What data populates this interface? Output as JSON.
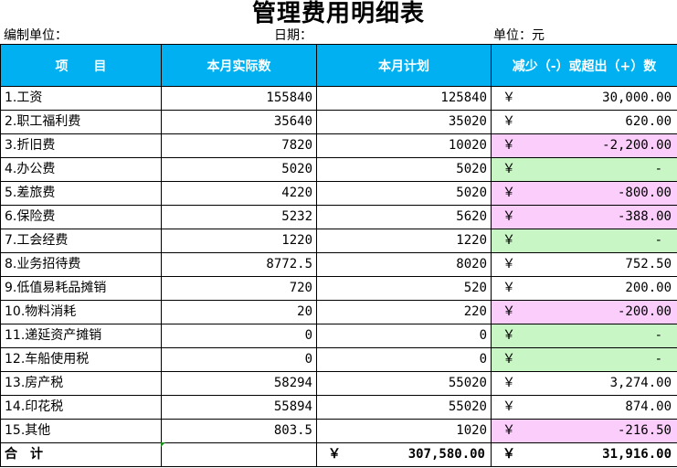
{
  "title": "管理费用明细表",
  "meta": {
    "unit_label": "编制单位：",
    "date_label": "日期：",
    "currency_label": "单位：元"
  },
  "headers": [
    "项　　目",
    "本月实际数",
    "本月计划",
    "减少（-）或超出（+）数"
  ],
  "currency_symbol": "￥",
  "rows": [
    {
      "item": "1.工资",
      "actual": "155840",
      "plan": "125840",
      "diff": "30,000.00",
      "sign": "pos"
    },
    {
      "item": "2.职工福利费",
      "actual": "35640",
      "plan": "35020",
      "diff": "620.00",
      "sign": "pos"
    },
    {
      "item": "3.折旧费",
      "actual": "7820",
      "plan": "10020",
      "diff": "-2,200.00",
      "sign": "neg"
    },
    {
      "item": "4.办公费",
      "actual": "5020",
      "plan": "5020",
      "diff": "-",
      "sign": "zero"
    },
    {
      "item": "5.差旅费",
      "actual": "4220",
      "plan": "5020",
      "diff": "-800.00",
      "sign": "neg"
    },
    {
      "item": "6.保险费",
      "actual": "5232",
      "plan": "5620",
      "diff": "-388.00",
      "sign": "neg"
    },
    {
      "item": "7.工会经费",
      "actual": "1220",
      "plan": "1220",
      "diff": "-",
      "sign": "zero"
    },
    {
      "item": "8.业务招待费",
      "actual": "8772.5",
      "plan": "8020",
      "diff": "752.50",
      "sign": "pos"
    },
    {
      "item": "9.低值易耗品摊销",
      "actual": "720",
      "plan": "520",
      "diff": "200.00",
      "sign": "pos"
    },
    {
      "item": "10.物料消耗",
      "actual": "20",
      "plan": "220",
      "diff": "-200.00",
      "sign": "neg"
    },
    {
      "item": "11.递延资产摊销",
      "actual": "0",
      "plan": "0",
      "diff": "-",
      "sign": "zero"
    },
    {
      "item": "12.车船使用税",
      "actual": "0",
      "plan": "0",
      "diff": "-",
      "sign": "zero"
    },
    {
      "item": "13.房产税",
      "actual": "58294",
      "plan": "55020",
      "diff": "3,274.00",
      "sign": "pos"
    },
    {
      "item": "14.印花税",
      "actual": "55894",
      "plan": "55020",
      "diff": "874.00",
      "sign": "pos"
    },
    {
      "item": "15.其他",
      "actual": "803.5",
      "plan": "1020",
      "diff": "-216.50",
      "sign": "neg"
    }
  ],
  "total": {
    "label": "合计",
    "actual": "",
    "plan": "307,580.00",
    "diff": "31,916.00"
  }
}
